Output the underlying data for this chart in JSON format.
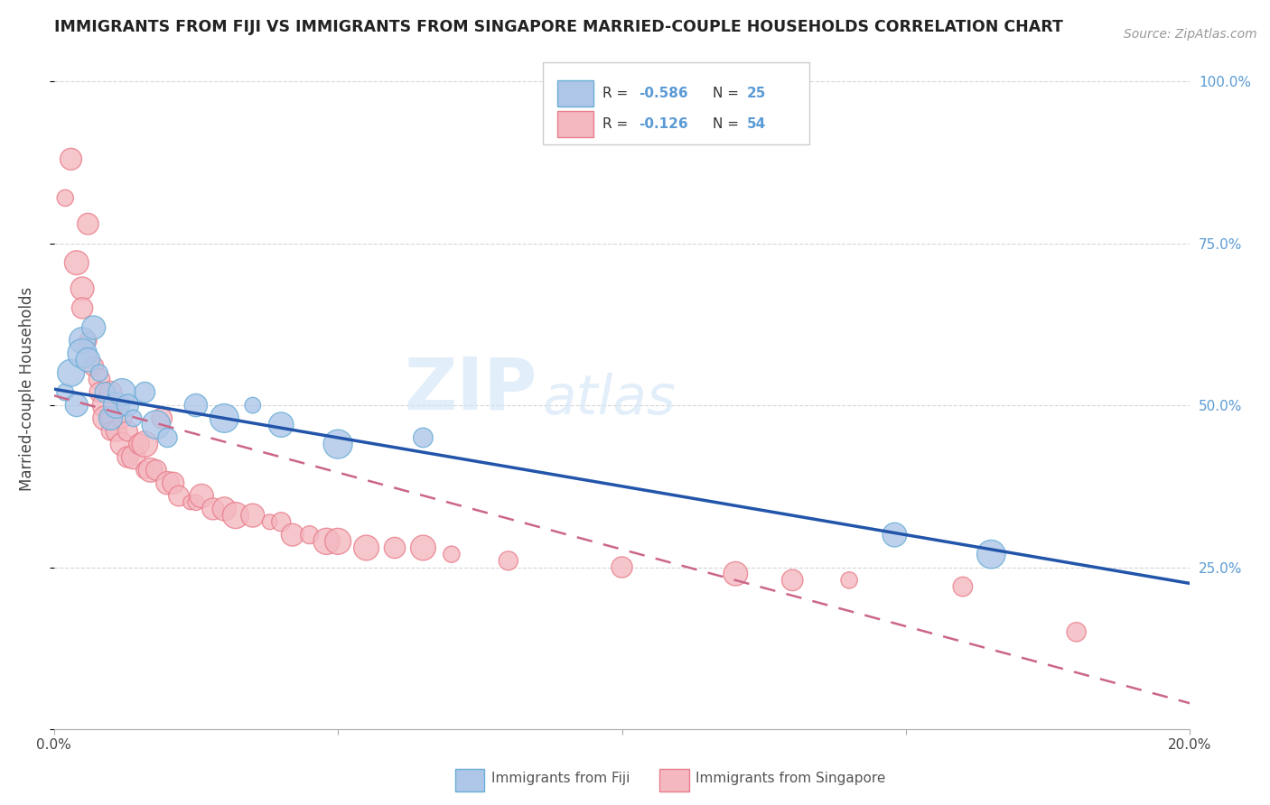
{
  "title": "IMMIGRANTS FROM FIJI VS IMMIGRANTS FROM SINGAPORE MARRIED-COUPLE HOUSEHOLDS CORRELATION CHART",
  "source_text": "Source: ZipAtlas.com",
  "ylabel": "Married-couple Households",
  "xmin": 0.0,
  "xmax": 0.2,
  "ymin": 0.0,
  "ymax": 1.05,
  "yticks": [
    0.0,
    0.25,
    0.5,
    0.75,
    1.0
  ],
  "ytick_labels": [
    "",
    "25.0%",
    "50.0%",
    "75.0%",
    "100.0%"
  ],
  "xticks": [
    0.0,
    0.05,
    0.1,
    0.15,
    0.2
  ],
  "xtick_labels": [
    "0.0%",
    "",
    "",
    "",
    "20.0%"
  ],
  "fiji_color": "#aec6e8",
  "fiji_edge_color": "#6aaed6",
  "singapore_color": "#f4b8c1",
  "singapore_edge_color": "#e87e8a",
  "fiji_line_color": "#2255aa",
  "singapore_line_color": "#cc6688",
  "background_color": "#ffffff",
  "grid_color": "#cccccc",
  "title_color": "#222222",
  "right_axis_color": "#5b9bd5",
  "fiji_R": -0.586,
  "fiji_N": 25,
  "singapore_R": -0.126,
  "singapore_N": 54,
  "fiji_line_y0": 0.525,
  "fiji_line_y1": 0.225,
  "singapore_line_y0": 0.515,
  "singapore_line_y1": 0.04,
  "fiji_scatter_x": [
    0.002,
    0.003,
    0.004,
    0.005,
    0.005,
    0.006,
    0.007,
    0.008,
    0.009,
    0.01,
    0.011,
    0.012,
    0.013,
    0.014,
    0.016,
    0.018,
    0.02,
    0.025,
    0.03,
    0.035,
    0.04,
    0.05,
    0.065,
    0.148,
    0.165
  ],
  "fiji_scatter_y": [
    0.52,
    0.55,
    0.5,
    0.6,
    0.58,
    0.57,
    0.62,
    0.55,
    0.52,
    0.48,
    0.5,
    0.52,
    0.5,
    0.48,
    0.52,
    0.47,
    0.45,
    0.5,
    0.48,
    0.5,
    0.47,
    0.44,
    0.45,
    0.3,
    0.27
  ],
  "singapore_scatter_x": [
    0.002,
    0.003,
    0.004,
    0.005,
    0.005,
    0.006,
    0.006,
    0.007,
    0.008,
    0.008,
    0.009,
    0.009,
    0.01,
    0.01,
    0.01,
    0.011,
    0.012,
    0.012,
    0.013,
    0.013,
    0.014,
    0.015,
    0.016,
    0.016,
    0.017,
    0.018,
    0.019,
    0.02,
    0.021,
    0.022,
    0.024,
    0.025,
    0.026,
    0.028,
    0.03,
    0.032,
    0.035,
    0.038,
    0.04,
    0.042,
    0.045,
    0.048,
    0.05,
    0.055,
    0.06,
    0.065,
    0.07,
    0.08,
    0.1,
    0.12,
    0.13,
    0.14,
    0.16,
    0.18
  ],
  "singapore_scatter_y": [
    0.82,
    0.88,
    0.72,
    0.68,
    0.65,
    0.6,
    0.78,
    0.56,
    0.54,
    0.52,
    0.5,
    0.48,
    0.48,
    0.52,
    0.46,
    0.46,
    0.48,
    0.44,
    0.46,
    0.42,
    0.42,
    0.44,
    0.44,
    0.4,
    0.4,
    0.4,
    0.48,
    0.38,
    0.38,
    0.36,
    0.35,
    0.35,
    0.36,
    0.34,
    0.34,
    0.33,
    0.33,
    0.32,
    0.32,
    0.3,
    0.3,
    0.29,
    0.29,
    0.28,
    0.28,
    0.28,
    0.27,
    0.26,
    0.25,
    0.24,
    0.23,
    0.23,
    0.22,
    0.15
  ]
}
